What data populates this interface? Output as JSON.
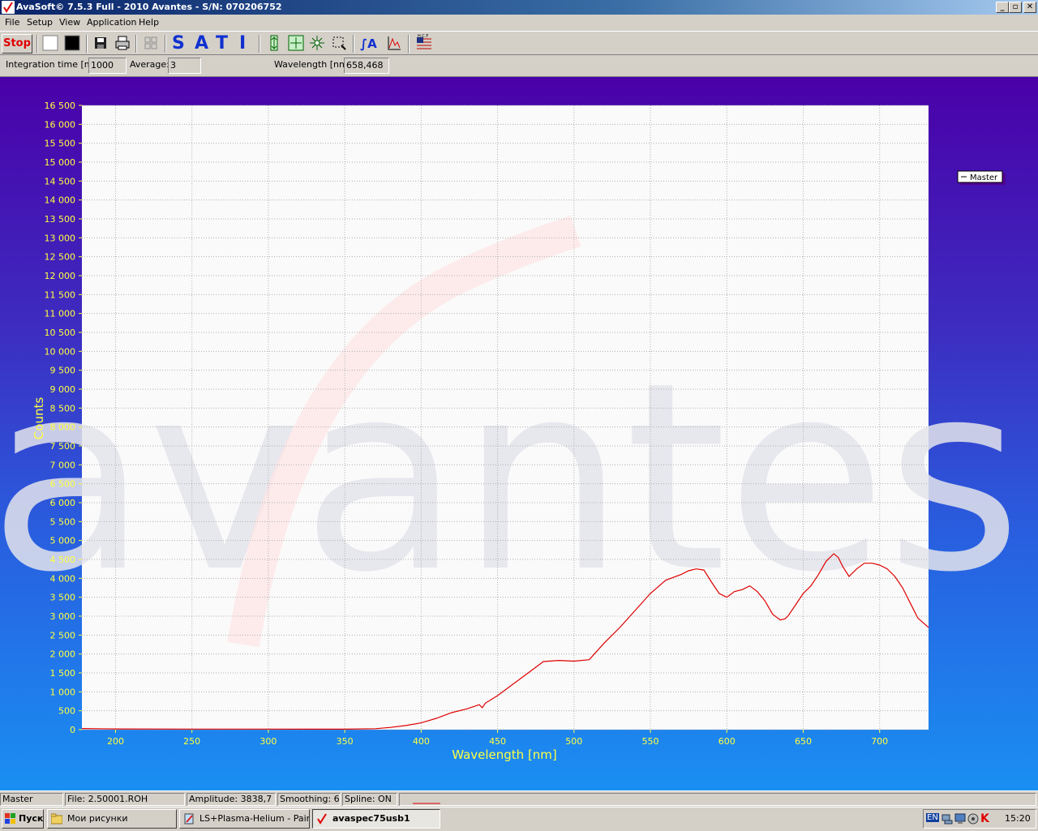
{
  "window": {
    "title": "AvaSoft© 7.5.3 Full - 2010 Avantes - S/N: 070206752",
    "controls": [
      "_",
      "▫",
      "✕"
    ]
  },
  "menu": [
    "File",
    "Setup",
    "View",
    "Application",
    "Help"
  ],
  "toolbar": {
    "stop_label": "Stop",
    "mode_letters": [
      "S",
      "A",
      "T",
      "I"
    ],
    "icons": [
      "white-reference-icon",
      "dark-reference-icon",
      "save-icon",
      "print-icon",
      "grid-icon",
      "y-scale-icon",
      "xy-autoscale-icon",
      "zoom-icon",
      "zoom-select-icon",
      "integration-icon",
      "peak-icon",
      "flag-icon"
    ]
  },
  "params": {
    "integration_label": "Integration time [ms]:",
    "integration_value": "1000",
    "average_label": "Average:",
    "average_value": "3",
    "wavelength_label": "Wavelength [nm]:",
    "wavelength_value": "658,468"
  },
  "legend": {
    "entry": "Master"
  },
  "watermark": "avantes",
  "chart_data": {
    "type": "line",
    "xlabel": "Wavelength [nm]",
    "ylabel": "Counts",
    "xlim": [
      178,
      732
    ],
    "ylim": [
      0,
      16500
    ],
    "grid": true,
    "legend_position": "right",
    "x_ticks": [
      "200",
      "250",
      "300",
      "350",
      "400",
      "450",
      "500",
      "550",
      "600",
      "650",
      "700"
    ],
    "y_ticks": [
      "0",
      "500",
      "1 000",
      "1 500",
      "2 000",
      "2 500",
      "3 000",
      "3 500",
      "4 000",
      "4 500",
      "5 000",
      "5 500",
      "6 000",
      "6 500",
      "7 000",
      "7 500",
      "8 000",
      "8 500",
      "9 000",
      "9 500",
      "10 000",
      "10 500",
      "11 000",
      "11 500",
      "12 000",
      "12 500",
      "13 000",
      "13 500",
      "14 000",
      "14 500",
      "15 000",
      "15 500",
      "16 000",
      "16 500"
    ],
    "series": [
      {
        "name": "Master",
        "color": "#e00000",
        "x": [
          178,
          200,
          250,
          300,
          350,
          370,
          380,
          390,
          400,
          410,
          420,
          430,
          438,
          440,
          442,
          450,
          460,
          470,
          480,
          490,
          500,
          510,
          520,
          530,
          540,
          550,
          560,
          570,
          575,
          580,
          585,
          590,
          595,
          600,
          605,
          610,
          615,
          620,
          625,
          630,
          635,
          638,
          640,
          645,
          650,
          655,
          660,
          665,
          670,
          673,
          676,
          680,
          685,
          690,
          695,
          700,
          705,
          710,
          715,
          720,
          725,
          732
        ],
        "y": [
          30,
          20,
          15,
          15,
          12,
          25,
          60,
          110,
          180,
          300,
          450,
          550,
          660,
          580,
          700,
          900,
          1200,
          1500,
          1800,
          1830,
          1810,
          1850,
          2300,
          2700,
          3150,
          3600,
          3950,
          4100,
          4200,
          4250,
          4220,
          3900,
          3600,
          3500,
          3650,
          3700,
          3800,
          3650,
          3400,
          3050,
          2900,
          2930,
          3000,
          3300,
          3600,
          3800,
          4100,
          4450,
          4650,
          4550,
          4300,
          4050,
          4250,
          4400,
          4400,
          4350,
          4250,
          4050,
          3750,
          3350,
          2950,
          2700
        ]
      }
    ]
  },
  "status": {
    "spectrum": "Master",
    "file": "File: 2.50001.ROH",
    "amplitude": "Amplitude: 3838,7",
    "smoothing": "Smoothing: 6",
    "spline": "Spline: ON"
  },
  "taskbar": {
    "start": "Пуск",
    "items": [
      "Мои рисунки",
      "LS+Plasma-Helium - Paint",
      "avaspec75usb1"
    ],
    "lang": "EN",
    "clock": "15:20"
  }
}
